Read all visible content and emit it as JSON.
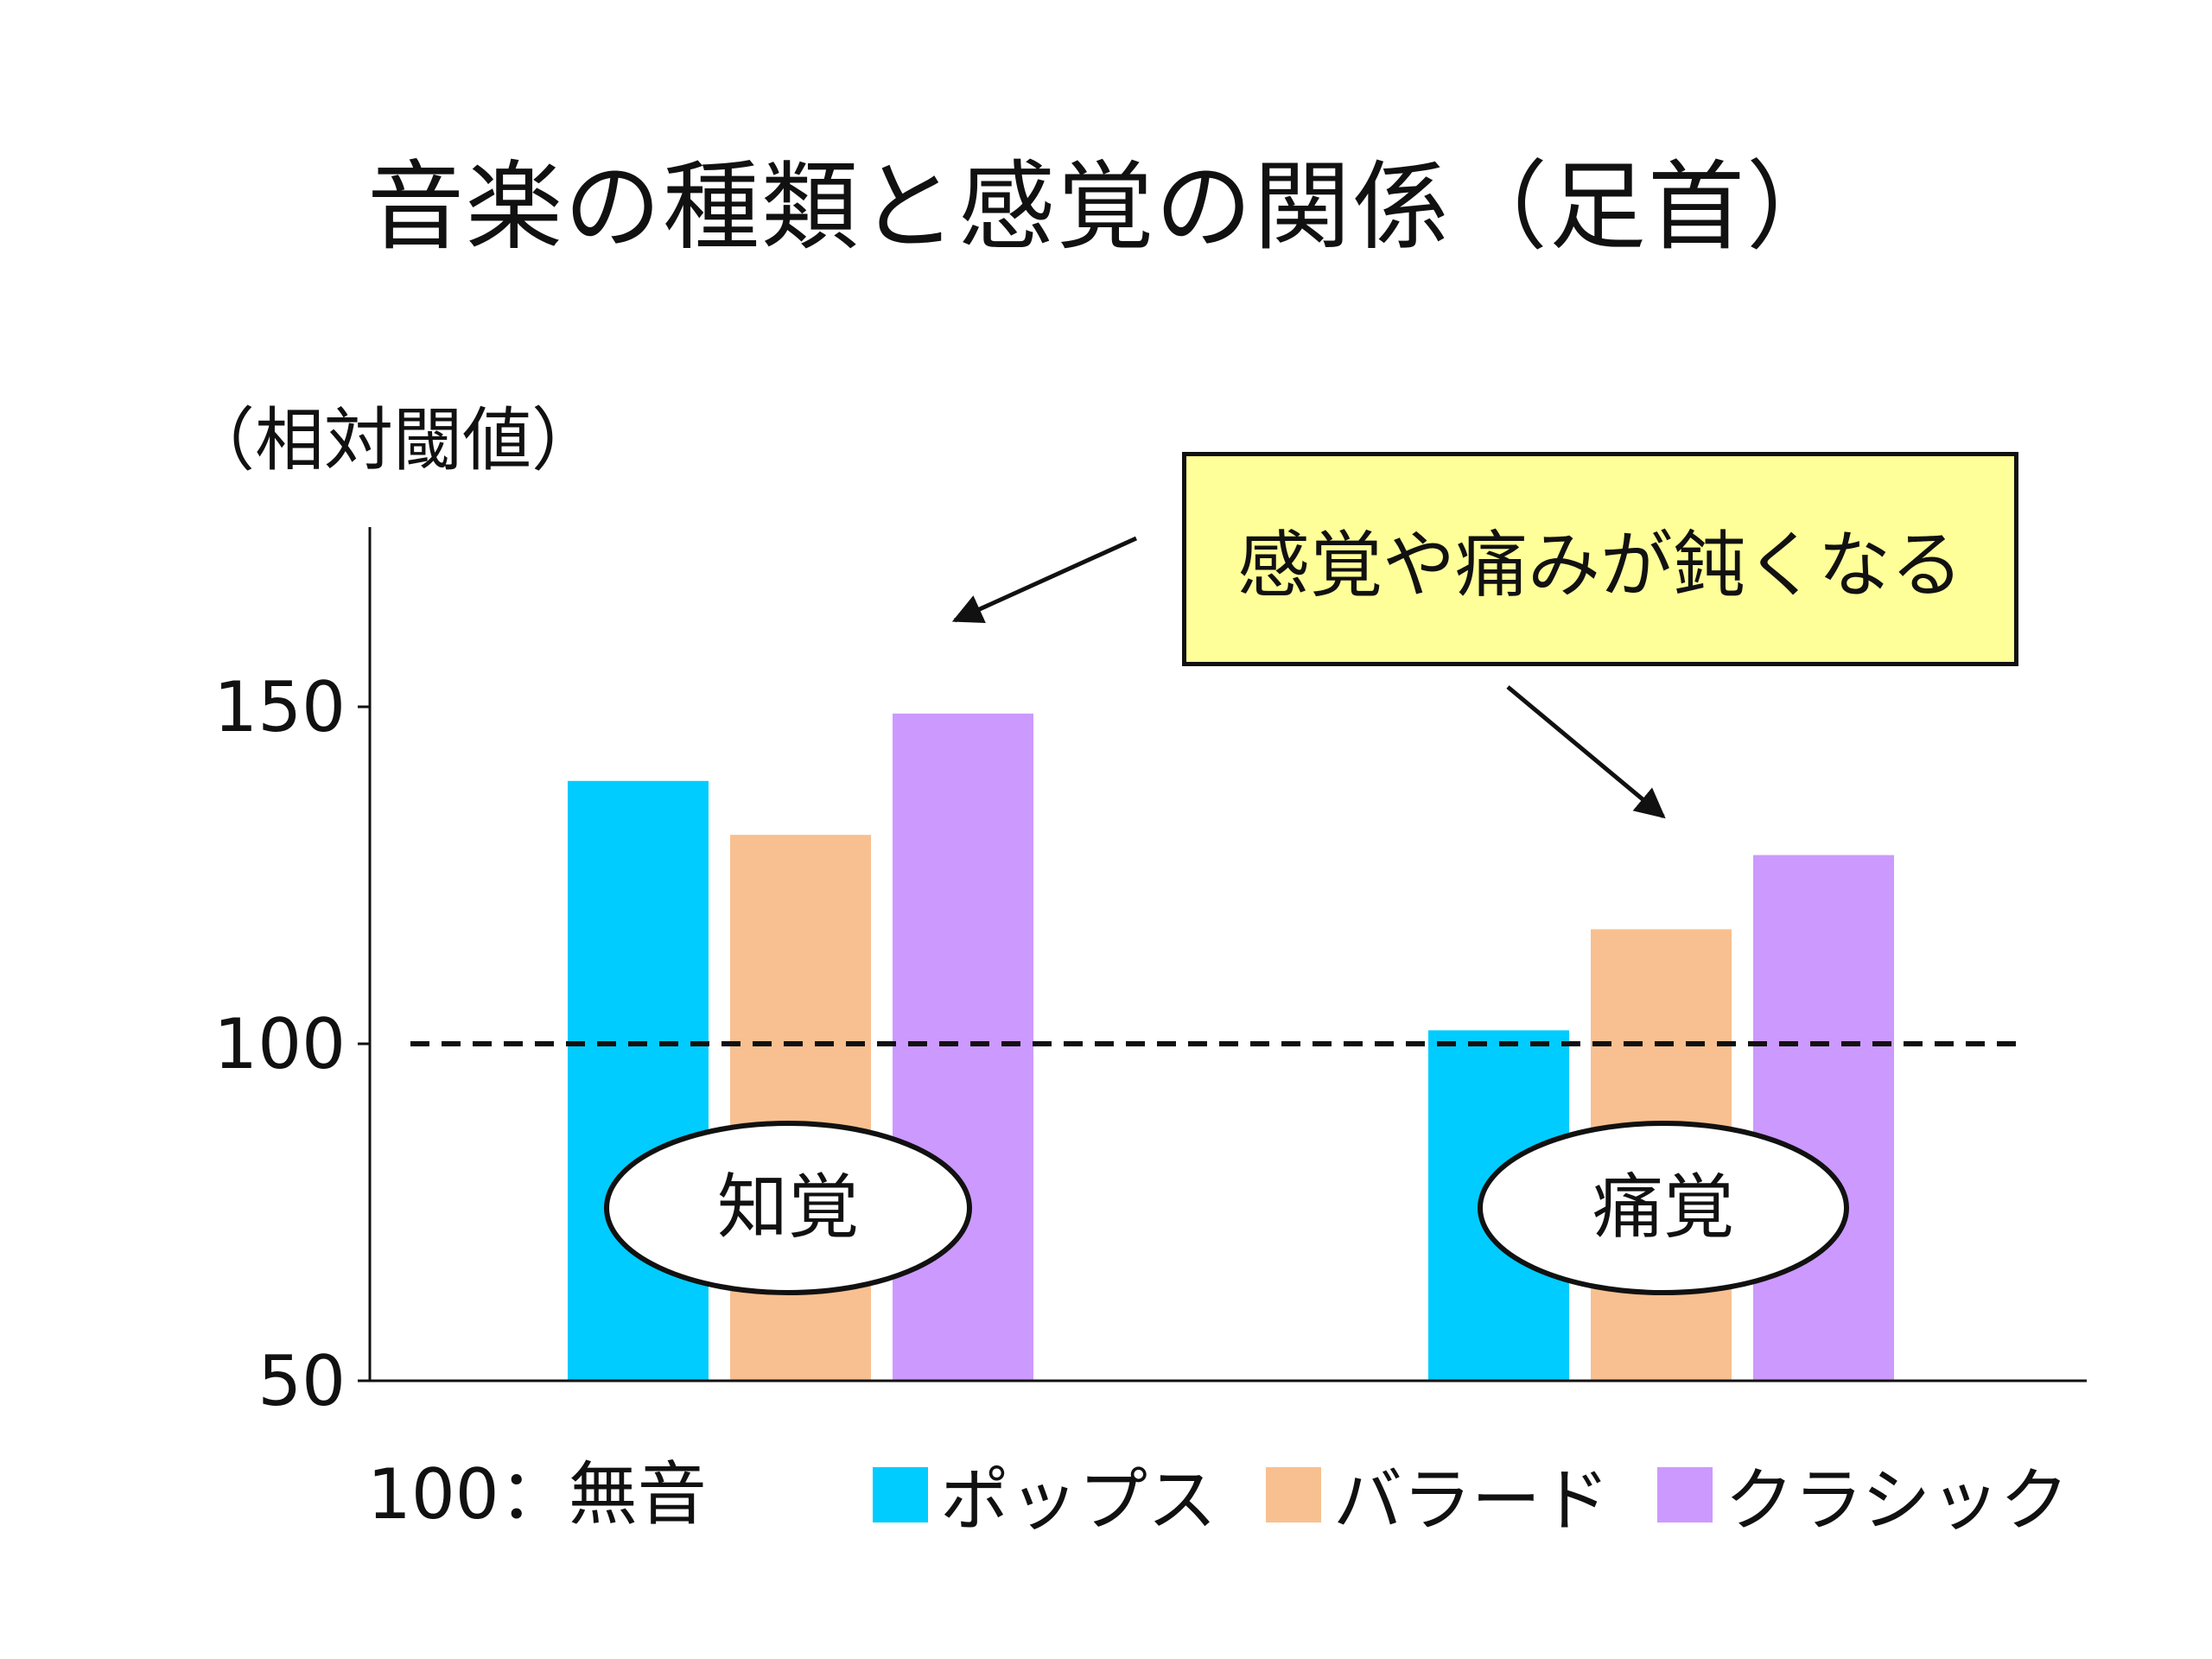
{
  "chart_data": {
    "type": "bar",
    "title": "音楽の種類と感覚の関係（足首）",
    "ylabel": "（相対閾値）",
    "ylim": [
      50,
      175
    ],
    "yticks": [
      50,
      100,
      150
    ],
    "reference_line": 100,
    "categories": [
      "知覚",
      "痛覚"
    ],
    "series": [
      {
        "name": "ポップス",
        "color": "#00ccff",
        "values": [
          139,
          102
        ]
      },
      {
        "name": "バラード",
        "color": "#f8c090",
        "values": [
          131,
          117
        ]
      },
      {
        "name": "クラシック",
        "color": "#cc99ff",
        "values": [
          149,
          128
        ]
      }
    ],
    "annotation": "感覚や痛みが鈍くなる",
    "footnote": "100：無音",
    "legend_position": "bottom"
  }
}
